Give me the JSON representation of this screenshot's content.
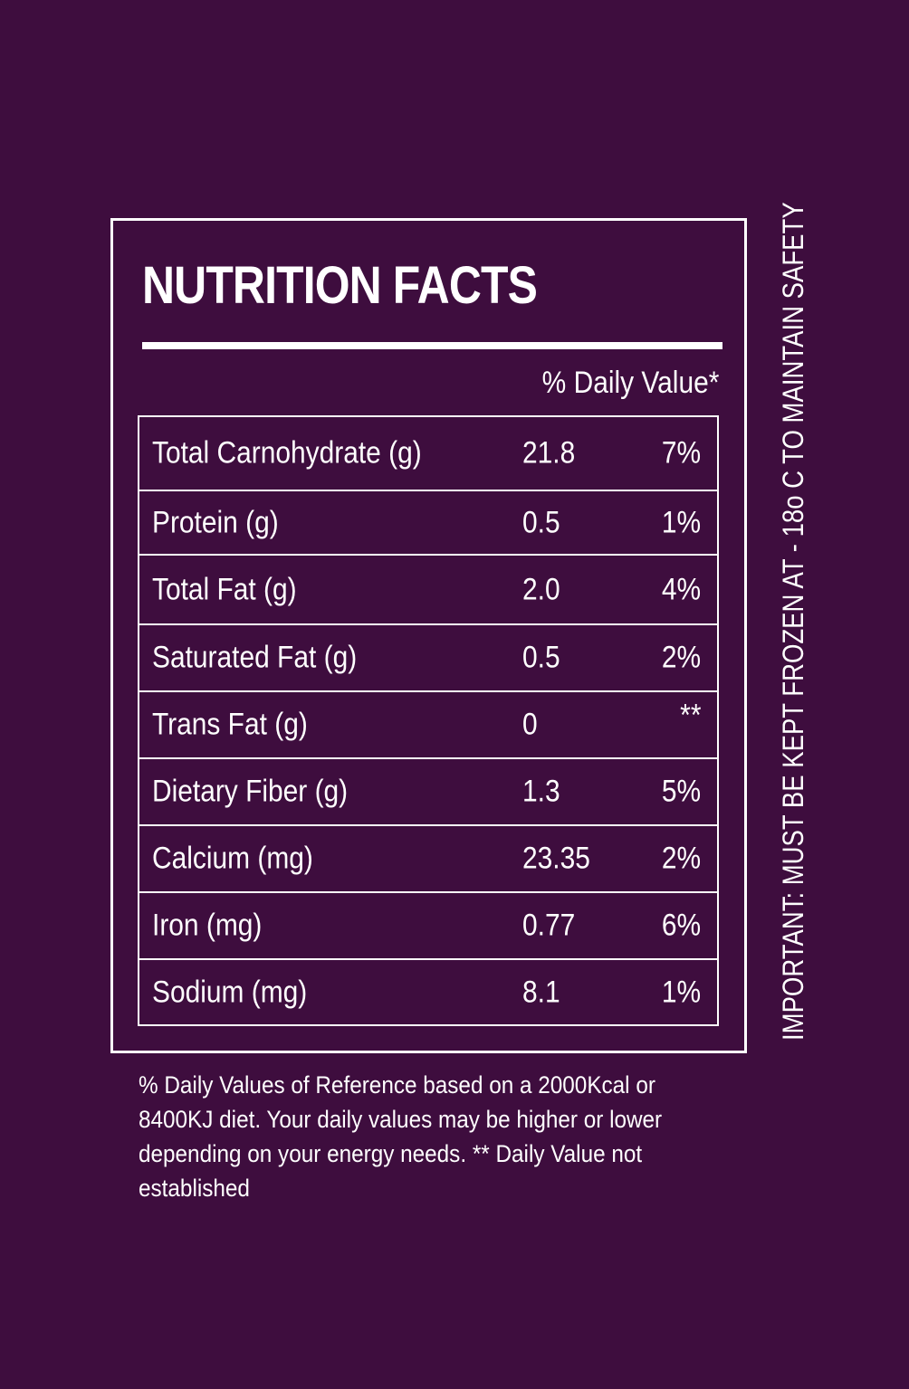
{
  "panel": {
    "title": "NUTRITION FACTS",
    "dv_header": "% Daily Value*"
  },
  "nutrients": [
    {
      "name": "Total Carnohydrate (g)",
      "amount": "21.8",
      "dv": "7%"
    },
    {
      "name": "Protein (g)",
      "amount": "0.5",
      "dv": "1%"
    },
    {
      "name": "Total Fat (g)",
      "amount": "2.0",
      "dv": "4%"
    },
    {
      "name": "Saturated Fat (g)",
      "amount": "0.5",
      "dv": "2%"
    },
    {
      "name": "Trans Fat (g)",
      "amount": "0",
      "dv": "**"
    },
    {
      "name": "Dietary Fiber (g)",
      "amount": "1.3",
      "dv": "5%"
    },
    {
      "name": "Calcium (mg)",
      "amount": "23.35",
      "dv": "2%"
    },
    {
      "name": "Iron (mg)",
      "amount": "0.77",
      "dv": "6%"
    },
    {
      "name": "Sodium (mg)",
      "amount": "8.1",
      "dv": "1%"
    }
  ],
  "footnote": "% Daily Values of Reference based on a 2000Kcal or 8400KJ diet. Your daily values may be higher or lower depending on your energy needs. ** Daily Value not established",
  "side_note": "IMPORTANT: MUST BE KEPT FROZEN AT - 18o C TO MAINTAIN  SAFETY",
  "colors": {
    "background": "#3e0d3e",
    "foreground": "#ffffff"
  }
}
